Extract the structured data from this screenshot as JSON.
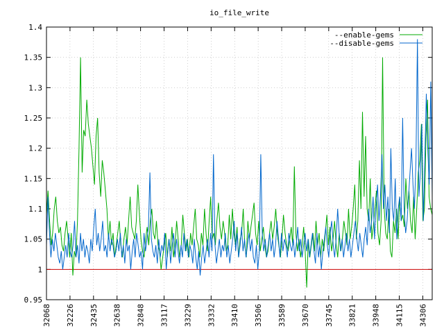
{
  "chart_data": {
    "type": "line",
    "title": "io_file_write",
    "xlabel": "",
    "ylabel": "",
    "ylim": [
      0.95,
      1.4
    ],
    "yticks": [
      "0.95",
      "1",
      "1.05",
      "1.1",
      "1.15",
      "1.2",
      "1.25",
      "1.3",
      "1.35",
      "1.4"
    ],
    "xticks": [
      "32068",
      "32226",
      "32435",
      "32638",
      "32848",
      "33117",
      "33229",
      "33332",
      "33410",
      "33506",
      "33589",
      "33670",
      "33745",
      "33821",
      "33948",
      "34115",
      "34306"
    ],
    "grid": true,
    "legend_position": "top-right",
    "baseline": {
      "value": 1.0,
      "color": "#cc0000"
    },
    "series": [
      {
        "name": "--enable-gems",
        "color": "#00aa00",
        "values": [
          1.09,
          1.13,
          1.08,
          1.04,
          1.06,
          1.1,
          1.12,
          1.08,
          1.06,
          1.07,
          1.04,
          1.03,
          1.06,
          1.08,
          1.05,
          1.02,
          1.06,
          0.99,
          1.03,
          1.02,
          1.08,
          1.2,
          1.35,
          1.16,
          1.23,
          1.22,
          1.28,
          1.24,
          1.22,
          1.2,
          1.17,
          1.14,
          1.22,
          1.25,
          1.16,
          1.12,
          1.18,
          1.16,
          1.13,
          1.1,
          1.05,
          1.08,
          1.04,
          1.06,
          1.02,
          1.04,
          1.06,
          1.08,
          1.04,
          1.02,
          1.05,
          1.07,
          1.04,
          1.08,
          1.12,
          1.07,
          1.06,
          1.05,
          1.08,
          1.14,
          1.09,
          1.05,
          1.03,
          1.02,
          1.05,
          1.07,
          1.04,
          1.08,
          1.1,
          1.06,
          1.05,
          1.08,
          1.04,
          1.03,
          1.0,
          1.02,
          1.04,
          1.06,
          1.02,
          1.05,
          1.03,
          1.07,
          1.02,
          1.04,
          1.08,
          1.05,
          1.02,
          1.04,
          1.09,
          1.06,
          1.03,
          1.05,
          1.02,
          1.06,
          1.04,
          1.07,
          1.1,
          1.05,
          1.04,
          1.02,
          1.06,
          1.04,
          1.1,
          1.06,
          1.03,
          1.08,
          1.12,
          1.05,
          1.06,
          1.04,
          1.08,
          1.11,
          1.07,
          1.05,
          1.08,
          1.06,
          1.03,
          1.04,
          1.09,
          1.05,
          1.1,
          1.06,
          1.04,
          1.07,
          1.02,
          1.05,
          1.06,
          1.1,
          1.04,
          1.02,
          1.08,
          1.05,
          1.07,
          1.09,
          1.11,
          1.06,
          1.04,
          1.08,
          1.03,
          1.05,
          1.07,
          1.04,
          1.02,
          1.03,
          1.06,
          1.08,
          1.05,
          1.07,
          1.1,
          1.06,
          1.04,
          1.02,
          1.05,
          1.09,
          1.06,
          1.04,
          1.03,
          1.05,
          1.07,
          1.04,
          1.17,
          1.06,
          1.03,
          1.05,
          1.02,
          1.04,
          1.07,
          1.03,
          0.97,
          1.05,
          1.02,
          1.04,
          1.06,
          1.03,
          1.08,
          1.04,
          1.06,
          1.02,
          1.05,
          1.03,
          1.06,
          1.09,
          1.04,
          1.07,
          1.03,
          1.05,
          1.08,
          1.04,
          1.02,
          1.06,
          1.03,
          1.05,
          1.08,
          1.06,
          1.04,
          1.1,
          1.05,
          1.07,
          1.1,
          1.14,
          1.05,
          1.08,
          1.18,
          1.1,
          1.26,
          1.12,
          1.22,
          1.1,
          1.08,
          1.15,
          1.05,
          1.07,
          1.1,
          1.13,
          1.06,
          1.04,
          1.08,
          1.35,
          1.1,
          1.06,
          1.05,
          1.1,
          1.03,
          1.02,
          1.08,
          1.06,
          1.1,
          1.05,
          1.12,
          1.08,
          1.09,
          1.07,
          1.15,
          1.1,
          1.13,
          1.08,
          1.06,
          1.12,
          1.05,
          1.1,
          1.16,
          1.18,
          1.24,
          1.08,
          1.1,
          1.22,
          1.28,
          1.12,
          1.1,
          1.09
        ]
      },
      {
        "name": "--disable-gems",
        "color": "#0066cc",
        "values": [
          1.04,
          1.12,
          1.06,
          1.02,
          1.05,
          1.03,
          1.06,
          1.04,
          1.02,
          1.01,
          1.03,
          1.0,
          1.02,
          1.04,
          1.02,
          1.06,
          1.03,
          1.02,
          1.04,
          1.08,
          1.02,
          1.04,
          1.01,
          1.06,
          1.03,
          1.05,
          1.02,
          1.04,
          1.03,
          1.01,
          1.05,
          1.03,
          1.07,
          1.1,
          1.04,
          1.06,
          1.03,
          1.05,
          1.08,
          1.03,
          1.04,
          1.02,
          1.06,
          1.03,
          1.05,
          1.04,
          1.02,
          1.03,
          1.05,
          1.03,
          1.06,
          1.02,
          1.04,
          1.01,
          1.05,
          1.03,
          1.04,
          1.0,
          1.03,
          1.05,
          1.02,
          1.06,
          1.04,
          1.02,
          1.03,
          1.0,
          1.06,
          1.03,
          1.05,
          1.07,
          1.16,
          1.05,
          1.03,
          1.02,
          1.04,
          1.01,
          1.05,
          1.02,
          1.04,
          1.03,
          1.06,
          1.0,
          1.03,
          1.05,
          1.01,
          1.04,
          1.06,
          1.02,
          1.05,
          1.03,
          1.01,
          1.04,
          1.02,
          1.06,
          1.03,
          1.05,
          1.02,
          1.04,
          1.03,
          1.01,
          1.05,
          1.02,
          1.0,
          1.03,
          0.99,
          1.02,
          1.04,
          1.01,
          1.03,
          1.05,
          1.02,
          1.06,
          1.03,
          1.19,
          1.04,
          1.01,
          1.03,
          1.05,
          1.02,
          1.04,
          1.03,
          1.06,
          1.02,
          1.04,
          1.01,
          1.03,
          1.05,
          1.08,
          1.03,
          1.06,
          1.02,
          1.04,
          1.07,
          1.03,
          1.05,
          1.02,
          1.04,
          1.06,
          1.03,
          1.05,
          1.02,
          1.01,
          1.04,
          1.0,
          1.03,
          1.19,
          1.06,
          1.03,
          1.05,
          1.02,
          1.04,
          1.06,
          1.03,
          1.05,
          1.02,
          1.04,
          1.08,
          1.05,
          1.02,
          1.06,
          1.03,
          1.05,
          1.04,
          1.02,
          1.06,
          1.04,
          1.03,
          1.05,
          1.02,
          1.04,
          1.07,
          1.03,
          1.05,
          1.02,
          1.04,
          1.06,
          1.03,
          1.05,
          1.02,
          1.04,
          1.06,
          1.03,
          1.01,
          1.06,
          1.02,
          1.04,
          1.0,
          1.03,
          1.05,
          1.07,
          1.04,
          1.02,
          1.06,
          1.08,
          1.04,
          1.02,
          1.05,
          1.1,
          1.06,
          1.03,
          1.05,
          1.02,
          1.04,
          1.06,
          1.03,
          1.05,
          1.02,
          1.04,
          1.06,
          1.08,
          1.05,
          1.03,
          1.06,
          1.04,
          1.02,
          1.05,
          1.07,
          1.04,
          1.1,
          1.06,
          1.08,
          1.12,
          1.05,
          1.1,
          1.14,
          1.08,
          1.12,
          1.19,
          1.1,
          1.14,
          1.08,
          1.12,
          1.06,
          1.2,
          1.1,
          1.08,
          1.15,
          1.05,
          1.1,
          1.12,
          1.08,
          1.25,
          1.1,
          1.06,
          1.08,
          1.12,
          1.16,
          1.2,
          1.14,
          1.1,
          1.18,
          1.38,
          1.12,
          1.16,
          1.24,
          1.08,
          1.18,
          1.29,
          1.2,
          1.14,
          1.31,
          1.12
        ]
      }
    ]
  }
}
